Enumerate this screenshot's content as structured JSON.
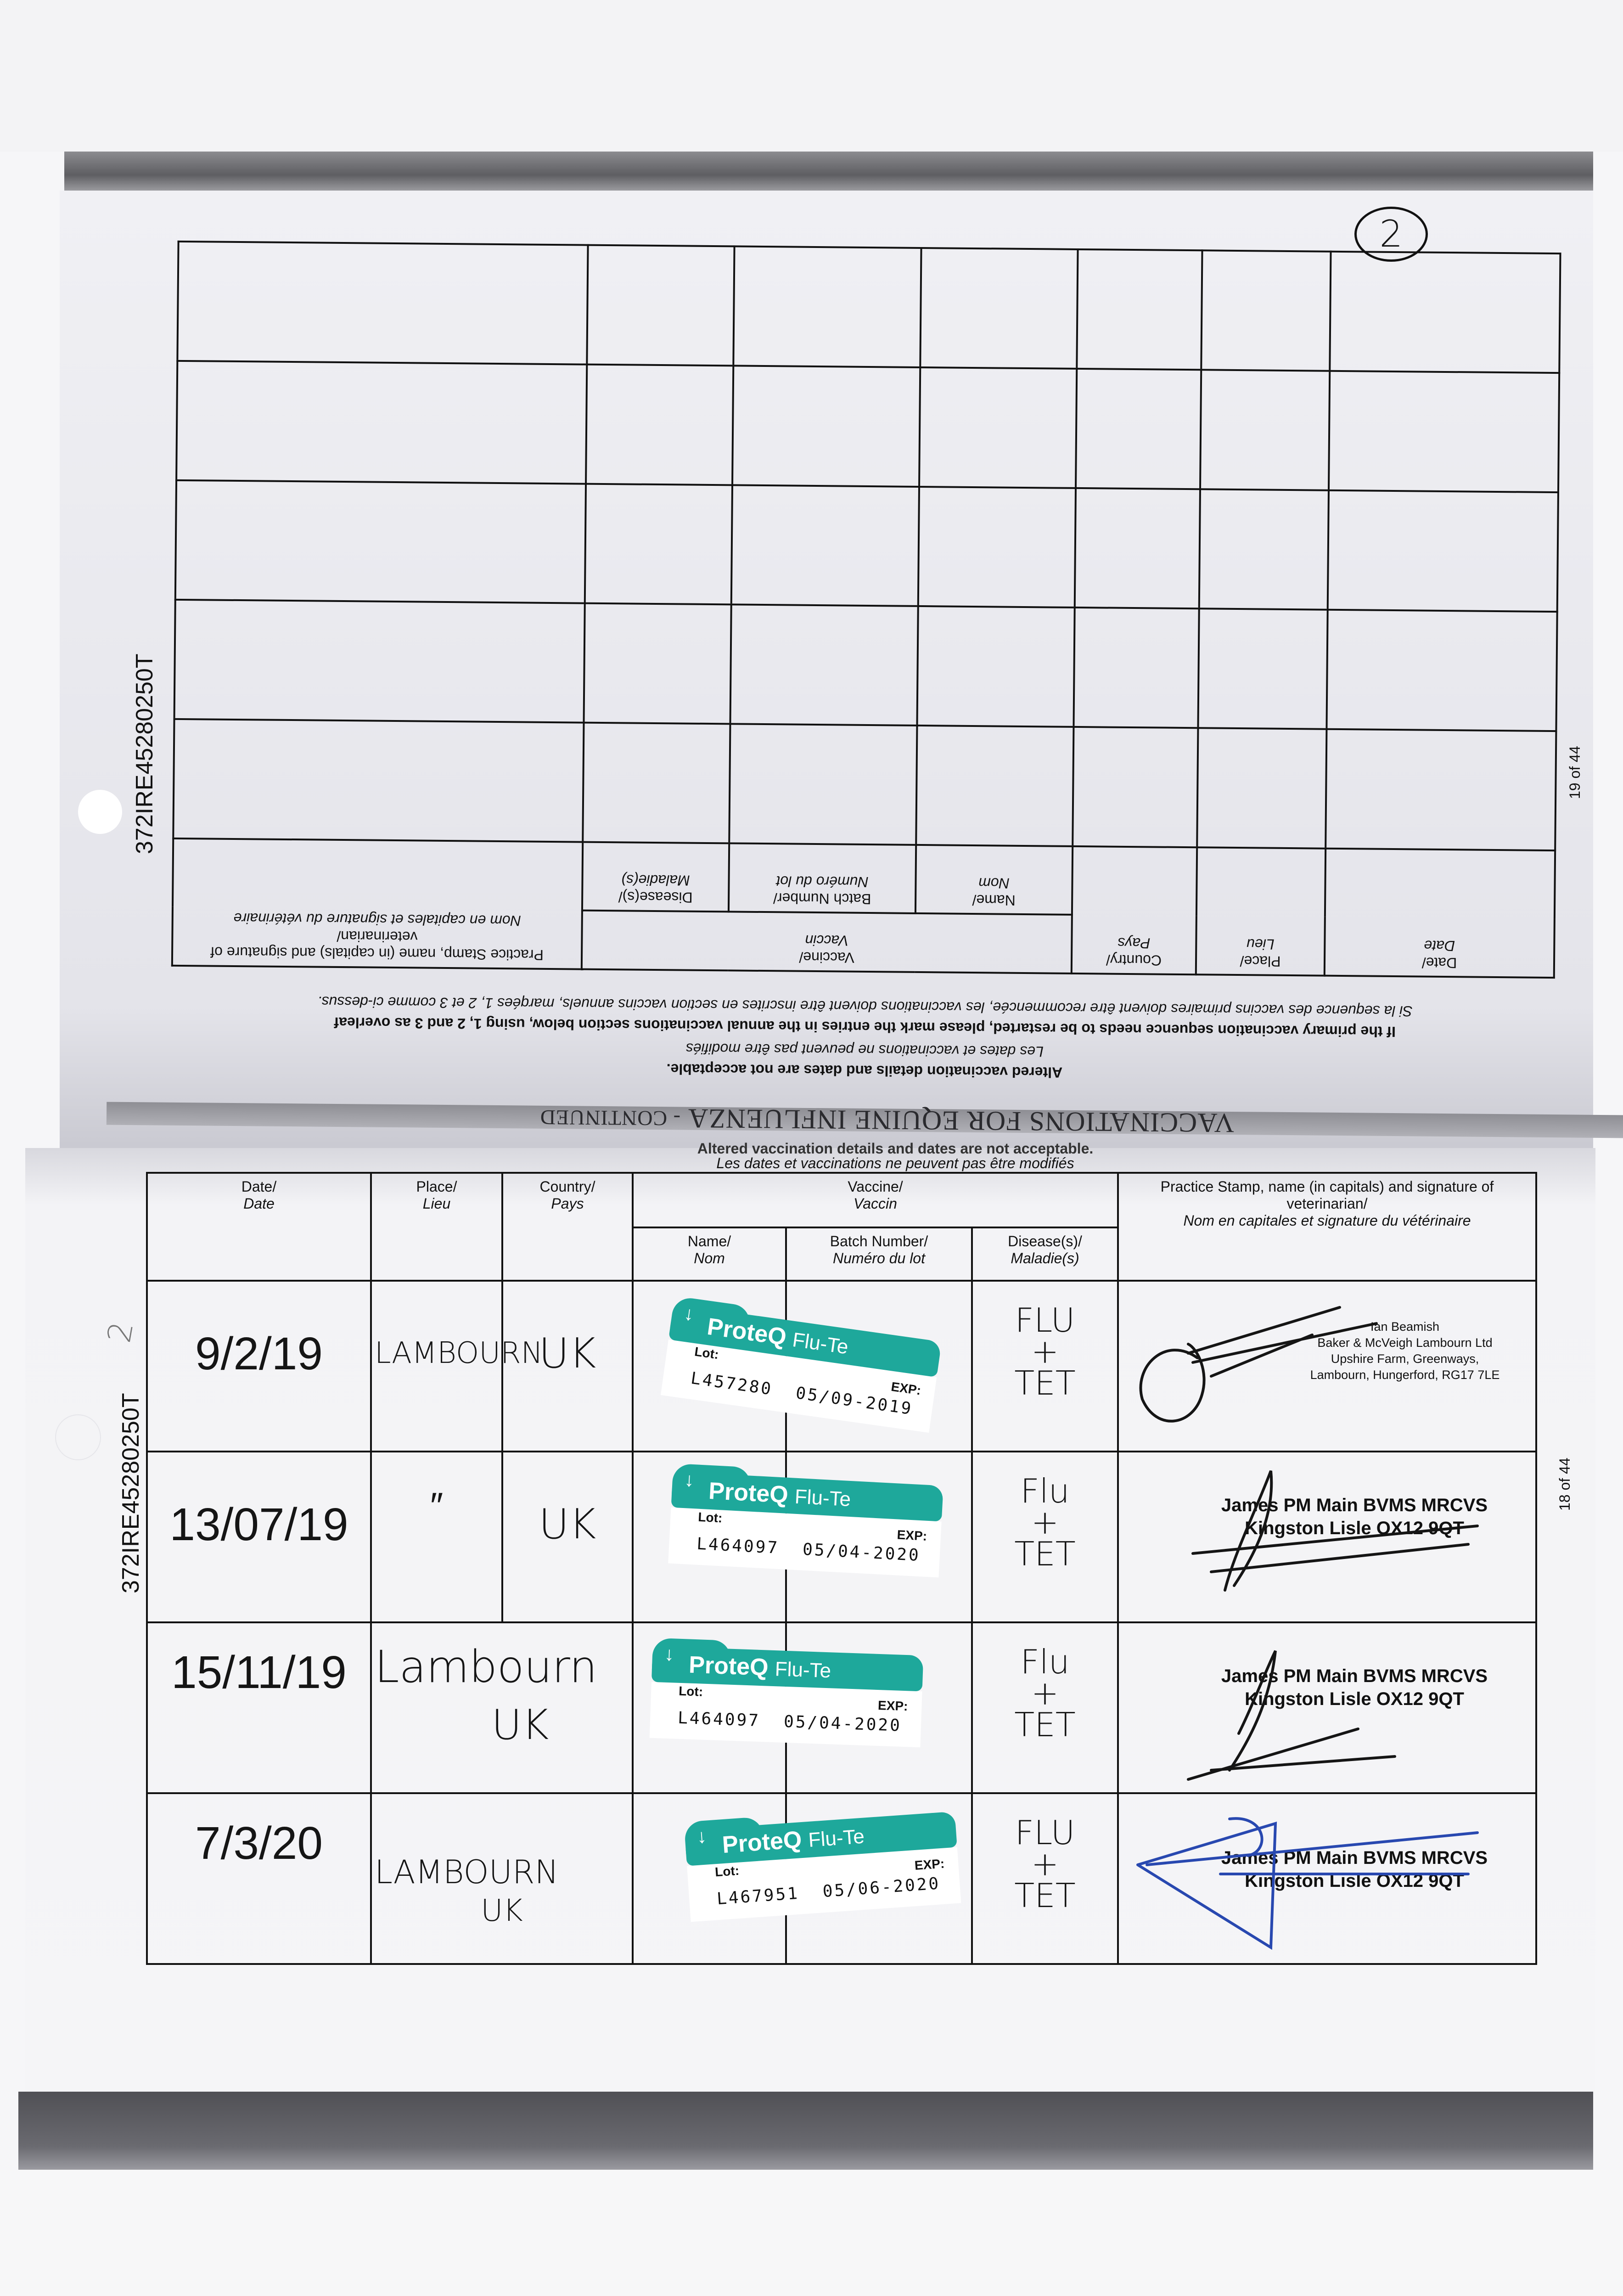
{
  "page_marker": "2",
  "passport_id": "372IRE45280250T",
  "headers": {
    "date": "Date/",
    "date_fr": "Date",
    "place": "Place/",
    "place_fr": "Lieu",
    "country": "Country/",
    "country_fr": "Pays",
    "vaccine": "Vaccine/",
    "vaccine_fr": "Vaccin",
    "name": "Name/",
    "name_fr": "Nom",
    "batch": "Batch Number/",
    "batch_fr": "Numéro du lot",
    "disease": "Disease(s)/",
    "disease_fr": "Maladie(s)",
    "practice": "Practice Stamp, name (in capitals) and signature of veterinarian/",
    "practice_fr": "Nom en capitales et signature du vétérinaire"
  },
  "top_page": {
    "title": "VACCINATIONS FOR EQUINE INFLUENZA",
    "title_suffix": "- CONTINUED",
    "warning_en": "Altered vaccination details and dates are not acceptable.",
    "warning_fr": "Les dates et vaccinations ne peuvent pas être modifiés",
    "note_en": "If the primary vaccination sequence needs to be restarted, please mark the entries in the annual vaccinations section below, using 1, 2 and 3 as overleaf",
    "note_fr": "Si la sequence des vaccins primaires doivent être recommencée, les vaccinations doivent être inscrites en section vaccins annuels, marqées 1, 2 et 3 comme ci-dessus.",
    "page_number": "19 of 44",
    "empty_rows": 5
  },
  "bottom_page": {
    "warning_en": "Altered vaccination details and dates are not acceptable.",
    "warning_fr": "Les dates et vaccinations ne peuvent pas être modifiés",
    "page_number": "18 of 44",
    "margin_note": "2",
    "rows": [
      {
        "date": "9/2/19",
        "place": "LAMBOURN",
        "country": "UK",
        "vaccine": {
          "brand": "ProteQ",
          "product": "Flu-Te",
          "lot_label": "Lot:",
          "exp_label": "EXP:",
          "lot": "L457280",
          "exp": "05/09-2019"
        },
        "disease": [
          "FLU",
          "+",
          "TET"
        ],
        "stamp": [
          "Ian Beamish",
          "Baker & McVeigh Lambourn Ltd",
          "Upshire Farm, Greenways,",
          "Lambourn, Hungerford, RG17 7LE"
        ],
        "ink": "#151515"
      },
      {
        "date": "13/07/19",
        "place": "″",
        "country": "UK",
        "vaccine": {
          "brand": "ProteQ",
          "product": "Flu-Te",
          "lot_label": "Lot:",
          "exp_label": "EXP:",
          "lot": "L464097",
          "exp": "05/04-2020"
        },
        "disease": [
          "Flu",
          "+",
          "TET"
        ],
        "stamp": [
          "James PM Main BVMS MRCVS",
          "Kingston Lisle OX12 9QT"
        ],
        "ink": "#151515"
      },
      {
        "date": "15/11/19",
        "place": "Lambourn",
        "country": "UK",
        "vaccine": {
          "brand": "ProteQ",
          "product": "Flu-Te",
          "lot_label": "Lot:",
          "exp_label": "EXP:",
          "lot": "L464097",
          "exp": "05/04-2020"
        },
        "disease": [
          "Flu",
          "+",
          "TET"
        ],
        "stamp": [
          "James PM Main BVMS MRCVS",
          "Kingston Lisle OX12 9QT"
        ],
        "ink": "#151515"
      },
      {
        "date": "7/3/20",
        "place": "LAMBOURN",
        "country": "UK",
        "vaccine": {
          "brand": "ProteQ",
          "product": "Flu-Te",
          "lot_label": "Lot:",
          "exp_label": "EXP:",
          "lot": "L467951",
          "exp": "05/06-2020"
        },
        "disease": [
          "FLU",
          "+",
          "TET"
        ],
        "stamp": [
          "James PM Main BVMS MRCVS",
          "Kingston Lisle OX12 9QT"
        ],
        "ink": "#2848b0"
      }
    ]
  },
  "colors": {
    "label_teal": "#1ea89b",
    "blue_ink": "#2848b0",
    "band_gray": "#8e8e94"
  }
}
